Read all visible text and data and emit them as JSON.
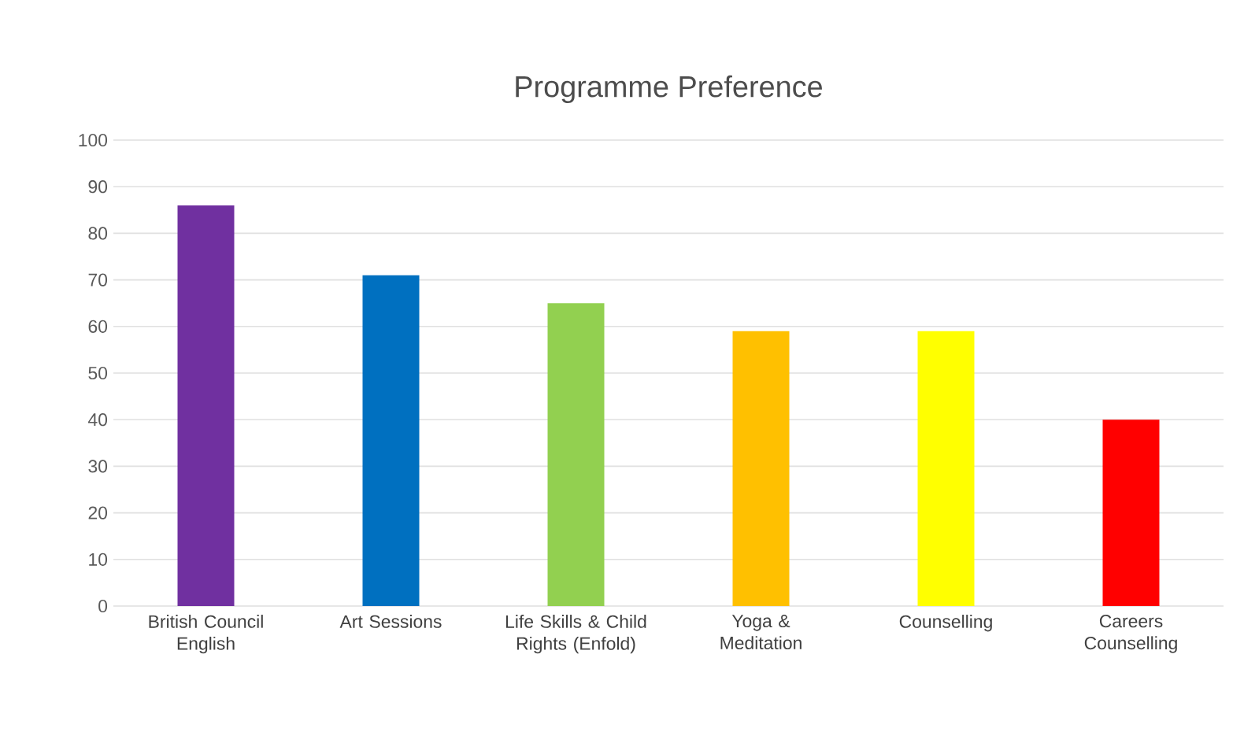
{
  "chart_data": {
    "type": "bar",
    "title": "Programme Preference",
    "categories": [
      "British Council English",
      "Art Sessions",
      "Life Skills & Child Rights (Enfold)",
      "Yoga & Meditation",
      "Counselling",
      "Careers Counselling"
    ],
    "values": [
      86,
      71,
      65,
      59,
      59,
      40
    ],
    "colors": [
      "#7030a0",
      "#0070c0",
      "#92d050",
      "#ffc000",
      "#ffff00",
      "#ff0000"
    ],
    "ylim": [
      0,
      100
    ],
    "yticks": [
      0,
      10,
      20,
      30,
      40,
      50,
      60,
      70,
      80,
      90,
      100
    ],
    "grid": "y"
  }
}
